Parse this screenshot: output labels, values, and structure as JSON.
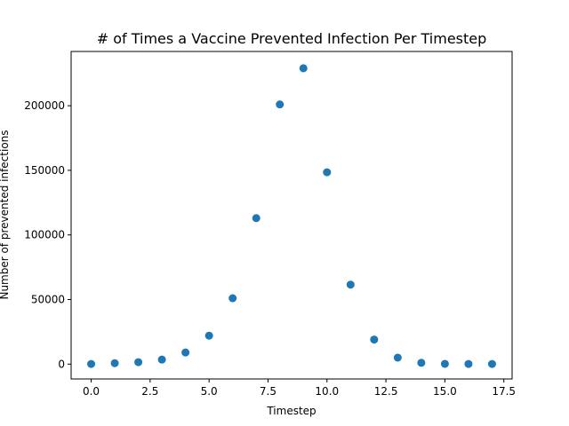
{
  "chart_data": {
    "type": "scatter",
    "title": "# of Times a Vaccine Prevented Infection Per Timestep",
    "xlabel": "Timestep",
    "ylabel": "Number of prevented infections",
    "xlim": [
      -0.85,
      17.85
    ],
    "ylim": [
      -11500,
      242000
    ],
    "xticks": [
      0.0,
      2.5,
      5.0,
      7.5,
      10.0,
      12.5,
      15.0,
      17.5
    ],
    "xtick_labels": [
      "0.0",
      "2.5",
      "5.0",
      "7.5",
      "10.0",
      "12.5",
      "15.0",
      "17.5"
    ],
    "yticks": [
      0,
      50000,
      100000,
      150000,
      200000
    ],
    "ytick_labels": [
      "0",
      "50000",
      "100000",
      "150000",
      "200000"
    ],
    "grid": false,
    "marker_color": "#1f77b4",
    "series": [
      {
        "x": [
          0,
          1,
          2,
          3,
          4,
          5,
          6,
          7,
          8,
          9,
          10,
          11,
          12,
          13,
          14,
          15,
          16,
          17
        ],
        "y": [
          100,
          700,
          1500,
          3500,
          9000,
          22000,
          51000,
          113000,
          201000,
          229000,
          148500,
          61500,
          19000,
          5000,
          1000,
          200,
          100,
          100
        ]
      }
    ]
  }
}
